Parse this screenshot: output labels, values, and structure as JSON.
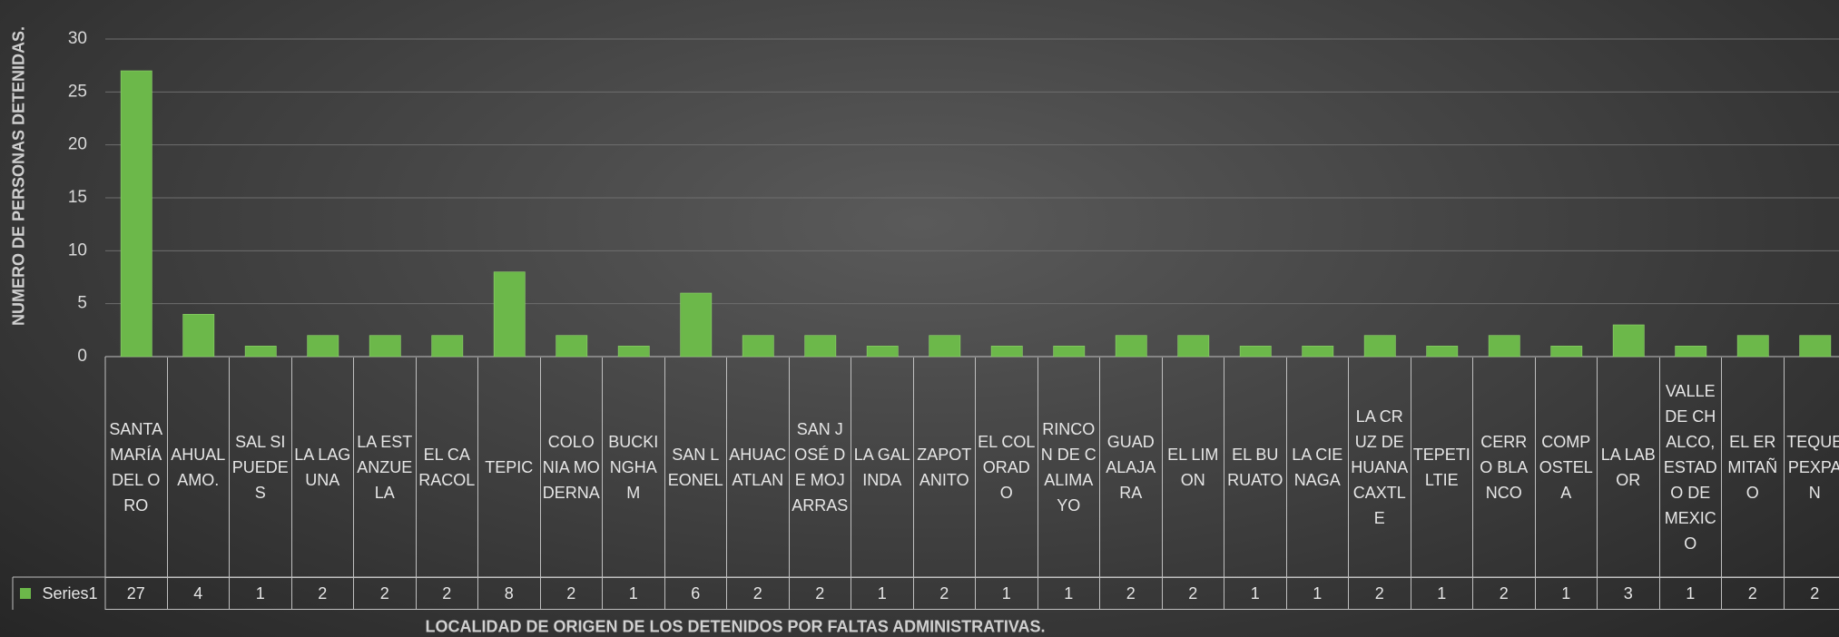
{
  "chart_data": {
    "type": "bar",
    "y_axis_label": "NUMERO DE PERSONAS DETENIDAS.",
    "x_axis_label": "LOCALIDAD DE ORIGEN DE LOS DETENIDOS POR FALTAS ADMINISTRATIVAS.",
    "categories": [
      "SANTA MARÍA DEL ORO",
      "AHUALAMO.",
      "SAL SI PUEDES",
      "LA LAGUNA",
      "LA ESTANZUELA",
      "EL CARACOL",
      "TEPIC",
      "COLONIA MODERNA",
      "BUCKINGHAM",
      "SAN LEONEL",
      "AHUACATLAN",
      "SAN JOSÉ DE MOJARRAS",
      "LA GALINDA",
      "ZAPOTANITO",
      "EL COLORADO",
      "RINCON DE CALIMAYO",
      "GUADALAJARA",
      "EL LIMON",
      "EL BURUATO",
      "LA CIENAGA",
      "LA CRUZ DE HUANACAXTLE",
      "TEPETILTIE",
      "CERRO BLANCO",
      "COMPOSTELA",
      "LA LABOR",
      "VALLE DE CHALCO, ESTADO DE MEXICO",
      "EL ERMITAÑO",
      "TEQUEPEXPAN"
    ],
    "series": [
      {
        "name": "Series1",
        "color": "#6cb84a",
        "values": [
          27,
          4,
          1,
          2,
          2,
          2,
          8,
          2,
          1,
          6,
          2,
          2,
          1,
          2,
          1,
          1,
          2,
          2,
          1,
          1,
          2,
          1,
          2,
          1,
          3,
          1,
          2,
          2
        ]
      }
    ],
    "ylim": [
      0,
      30
    ],
    "yticks": [
      0,
      5,
      10,
      15,
      20,
      25,
      30
    ],
    "grid": true
  }
}
